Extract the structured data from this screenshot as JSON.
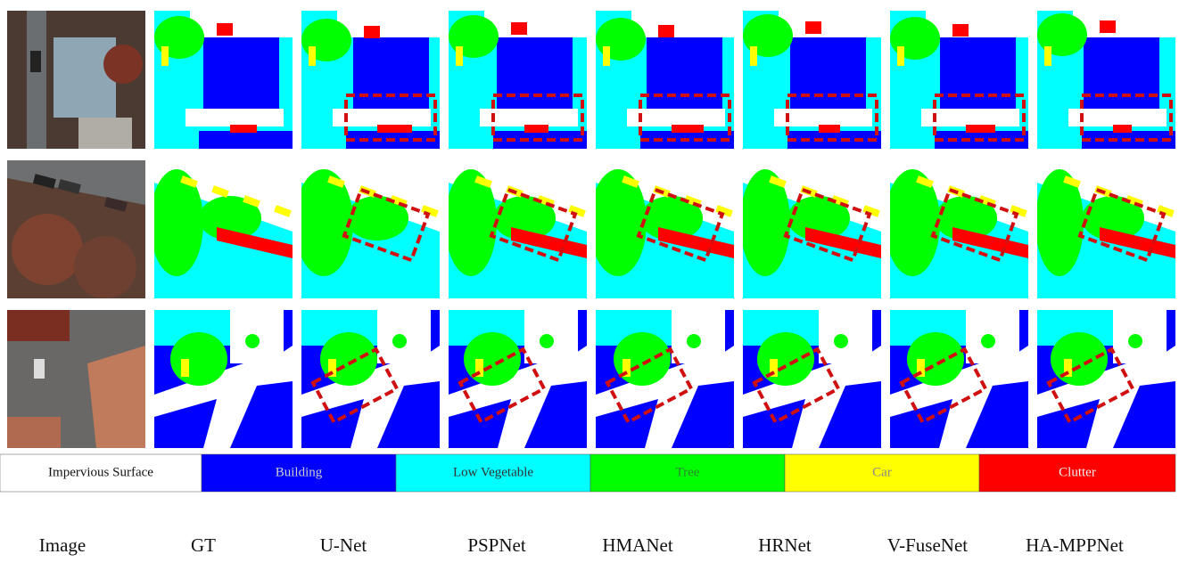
{
  "columns": [
    "Image",
    "GT",
    "U-Net",
    "PSPNet",
    "HMANet",
    "HRNet",
    "V-FuseNet",
    "HA-MPPNet"
  ],
  "legend": [
    {
      "label": "Impervious Surface",
      "color": "#ffffff"
    },
    {
      "label": "Building",
      "color": "#0000ff"
    },
    {
      "label": "Low Vegetable",
      "color": "#00ffff"
    },
    {
      "label": "Tree",
      "color": "#00ff00"
    },
    {
      "label": "Car",
      "color": "#ffff00"
    },
    {
      "label": "Clutter",
      "color": "#ff0000"
    }
  ]
}
